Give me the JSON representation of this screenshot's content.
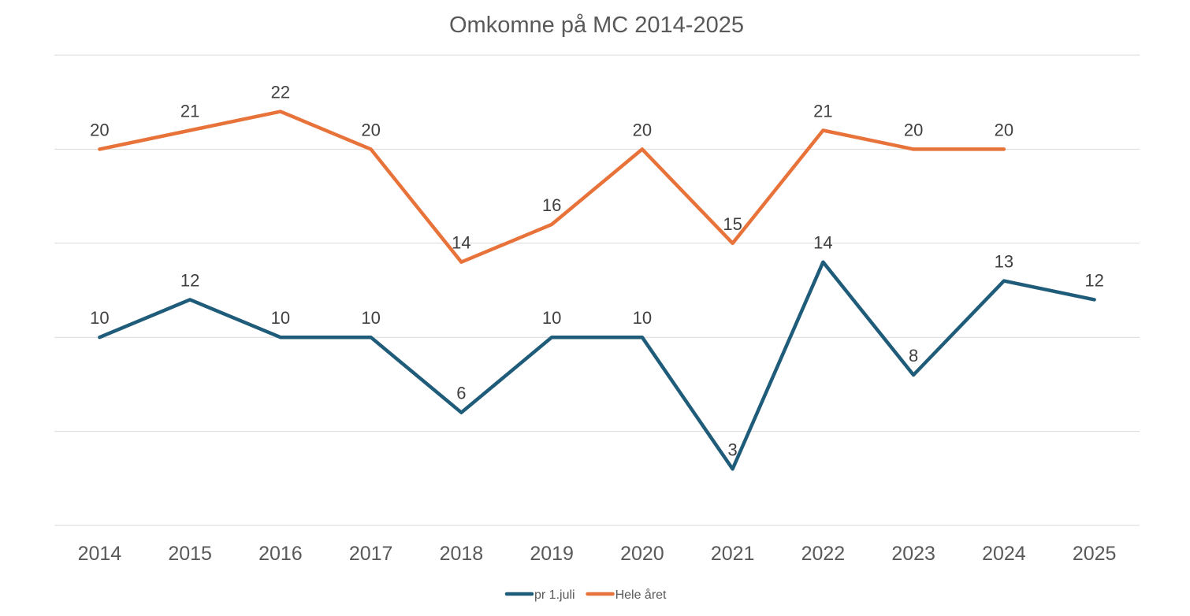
{
  "chart_data": {
    "type": "line",
    "title": "Omkomne på MC 2014-2025",
    "xlabel": "",
    "ylabel": "",
    "categories": [
      "2014",
      "2015",
      "2016",
      "2017",
      "2018",
      "2019",
      "2020",
      "2021",
      "2022",
      "2023",
      "2024",
      "2025"
    ],
    "ylim": [
      0,
      25
    ],
    "grid": true,
    "legend_position": "bottom",
    "series": [
      {
        "name": "pr 1.juli",
        "color": "#1f5c7a",
        "values": [
          10,
          12,
          10,
          10,
          6,
          10,
          10,
          3,
          14,
          8,
          13,
          12
        ]
      },
      {
        "name": "Hele året",
        "color": "#e8733a",
        "values": [
          20,
          21,
          22,
          20,
          14,
          16,
          20,
          15,
          21,
          20,
          20,
          null
        ]
      }
    ]
  }
}
